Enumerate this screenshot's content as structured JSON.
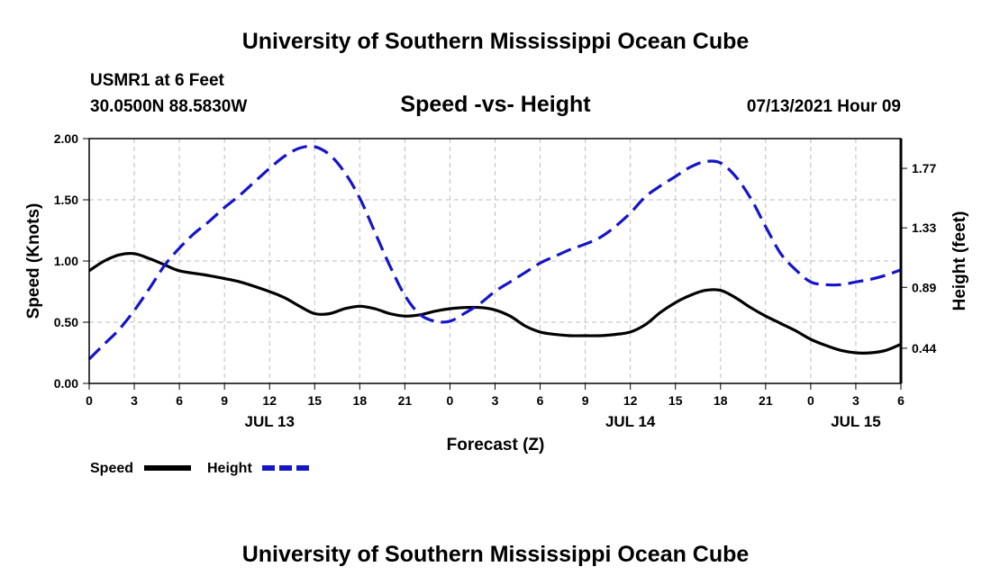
{
  "header": {
    "title_top": "University of Southern Mississippi Ocean Cube",
    "station": "USMR1 at 6 Feet",
    "coords": "30.0500N  88.5830W",
    "subtitle": "Speed -vs- Height",
    "datetime": "07/13/2021 Hour 09",
    "title_bottom": "University of Southern Mississippi Ocean Cube"
  },
  "chart_data": {
    "type": "line",
    "title": "Speed -vs- Height",
    "xlabel": "Forecast (Z)",
    "ylabel": "Speed (Knots)",
    "y2label": "Height (feet)",
    "x_unit": "hours since 07/13 00Z",
    "xlim": [
      0,
      54
    ],
    "ylim": [
      0,
      2.0
    ],
    "y2lim": [
      0.18,
      1.99
    ],
    "grid": true,
    "legend_position": "bottom-left",
    "x_ticks": [
      0,
      3,
      6,
      9,
      12,
      15,
      18,
      21,
      24,
      27,
      30,
      33,
      36,
      39,
      42,
      45,
      48,
      51,
      54
    ],
    "x_tick_labels": [
      "0",
      "3",
      "6",
      "9",
      "12",
      "15",
      "18",
      "21",
      "0",
      "3",
      "6",
      "9",
      "12",
      "15",
      "18",
      "21",
      "0",
      "3",
      "6"
    ],
    "date_labels": [
      {
        "x": 12,
        "label": "JUL 13"
      },
      {
        "x": 36,
        "label": "JUL 14"
      },
      {
        "x": 51,
        "label": "JUL 15"
      }
    ],
    "y_ticks": [
      0.0,
      0.5,
      1.0,
      1.5,
      2.0
    ],
    "y_tick_labels": [
      "0.00",
      "0.50",
      "1.00",
      "1.50",
      "2.00"
    ],
    "y2_ticks": [
      0.44,
      0.89,
      1.33,
      1.77
    ],
    "y2_tick_labels": [
      "0.44",
      "0.89",
      "1.33",
      "1.77"
    ],
    "series": [
      {
        "name": "Speed",
        "axis": "left",
        "color": "#000000",
        "dash": "solid",
        "x": [
          0,
          1,
          2,
          3,
          4,
          5,
          6,
          8,
          10,
          12,
          13,
          14,
          15,
          16,
          17,
          18,
          19,
          20,
          21,
          22,
          23,
          24,
          25,
          26,
          27,
          28,
          29,
          30,
          31,
          32,
          33,
          34,
          35,
          36,
          37,
          38,
          39,
          40,
          41,
          42,
          43,
          44,
          45,
          46,
          47,
          48,
          49,
          50,
          51,
          52,
          53,
          54
        ],
        "values": [
          0.92,
          1.0,
          1.05,
          1.06,
          1.02,
          0.97,
          0.92,
          0.88,
          0.83,
          0.75,
          0.7,
          0.63,
          0.57,
          0.57,
          0.61,
          0.63,
          0.61,
          0.57,
          0.55,
          0.56,
          0.59,
          0.61,
          0.62,
          0.62,
          0.6,
          0.55,
          0.47,
          0.42,
          0.4,
          0.39,
          0.39,
          0.39,
          0.4,
          0.42,
          0.48,
          0.58,
          0.66,
          0.72,
          0.76,
          0.76,
          0.7,
          0.62,
          0.55,
          0.49,
          0.43,
          0.36,
          0.31,
          0.27,
          0.25,
          0.25,
          0.27,
          0.32
        ]
      },
      {
        "name": "Height",
        "axis": "right",
        "color": "#1515c8",
        "dash": "dashed",
        "x": [
          0,
          1,
          2,
          3,
          4,
          5,
          6,
          7,
          8,
          9,
          10,
          11,
          12,
          13,
          14,
          15,
          16,
          17,
          18,
          19,
          20,
          21,
          22,
          23,
          24,
          25,
          26,
          27,
          28,
          29,
          30,
          31,
          32,
          33,
          34,
          35,
          36,
          37,
          38,
          39,
          40,
          41,
          42,
          43,
          44,
          45,
          46,
          47,
          48,
          49,
          50,
          51,
          52,
          53,
          54
        ],
        "values": [
          0.36,
          0.47,
          0.58,
          0.72,
          0.88,
          1.05,
          1.18,
          1.29,
          1.38,
          1.48,
          1.57,
          1.67,
          1.77,
          1.86,
          1.92,
          1.93,
          1.87,
          1.74,
          1.55,
          1.3,
          1.05,
          0.83,
          0.69,
          0.64,
          0.64,
          0.7,
          0.77,
          0.86,
          0.93,
          1.0,
          1.07,
          1.12,
          1.17,
          1.21,
          1.26,
          1.34,
          1.44,
          1.56,
          1.64,
          1.71,
          1.78,
          1.82,
          1.81,
          1.71,
          1.55,
          1.34,
          1.14,
          1.02,
          0.93,
          0.91,
          0.91,
          0.93,
          0.95,
          0.98,
          1.02
        ]
      }
    ]
  }
}
